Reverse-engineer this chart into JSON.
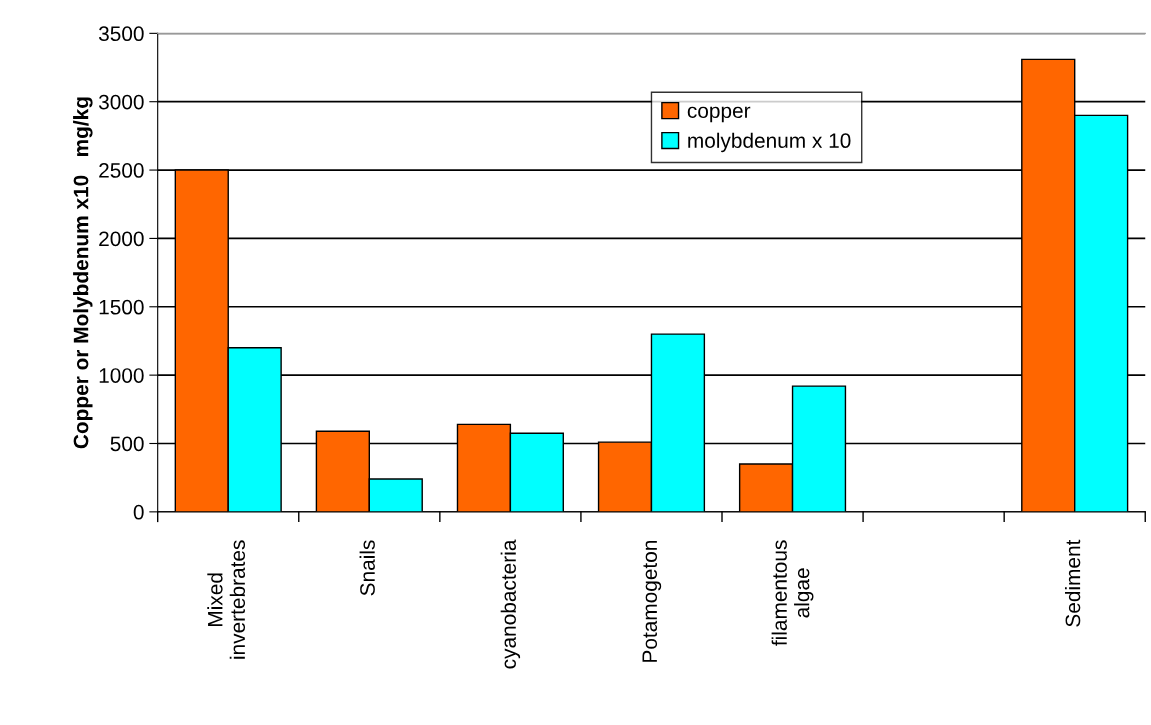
{
  "chart_data": {
    "type": "bar",
    "ylabel": "Copper or Molybdenum x10   mg/kg",
    "categories": [
      "Mixed\ninvertebrates",
      "Snails",
      "cyanobacteria",
      "Potamogeton",
      "filamentous\nalgae",
      null,
      "Sediment"
    ],
    "series": [
      {
        "name": "copper",
        "color": "#ff6600",
        "values": [
          2500,
          590,
          640,
          510,
          350,
          null,
          3310
        ]
      },
      {
        "name": "molybdenum x 10",
        "color": "#00ffff",
        "values": [
          1200,
          240,
          575,
          1300,
          920,
          null,
          2900
        ]
      }
    ],
    "ylim": [
      0,
      3500
    ],
    "yticks": [
      0,
      500,
      1000,
      1500,
      2000,
      2500,
      3000,
      3500
    ],
    "grid": "y",
    "legend": "top right"
  }
}
